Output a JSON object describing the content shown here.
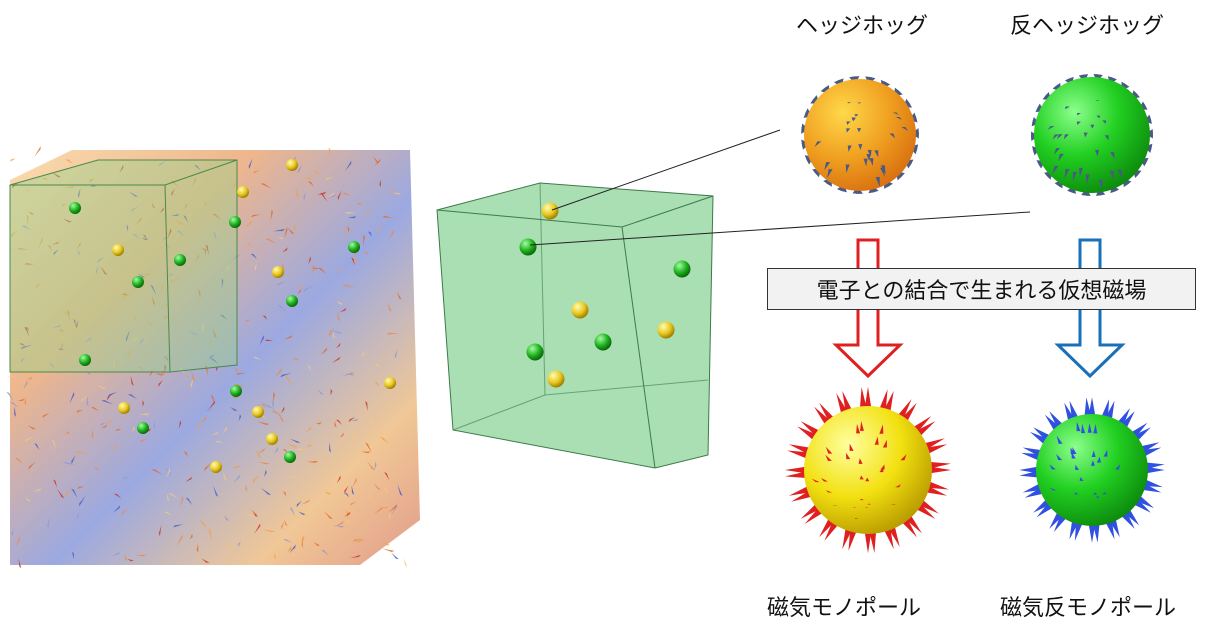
{
  "labels": {
    "hedgehog": "ヘッジホッグ",
    "anti_hedgehog": "反ヘッジホッグ",
    "emergent_field": "電子との結合で生まれる仮想磁場",
    "monopole": "磁気モノポール",
    "anti_monopole": "磁気反モノポール"
  },
  "colors": {
    "hedgehog_sphere": "#f2a81a",
    "anti_hedgehog_sphere": "#2fd02f",
    "monopole_sphere": "#f5e020",
    "anti_monopole_sphere": "#2fd02f",
    "hedgehog_cones": "#4a5a86",
    "monopole_cones": "#e02020",
    "anti_monopole_cones": "#3050e0",
    "arrow_red": "#e02020",
    "arrow_blue": "#1a70b8",
    "cube_green": "#8cd49a"
  }
}
